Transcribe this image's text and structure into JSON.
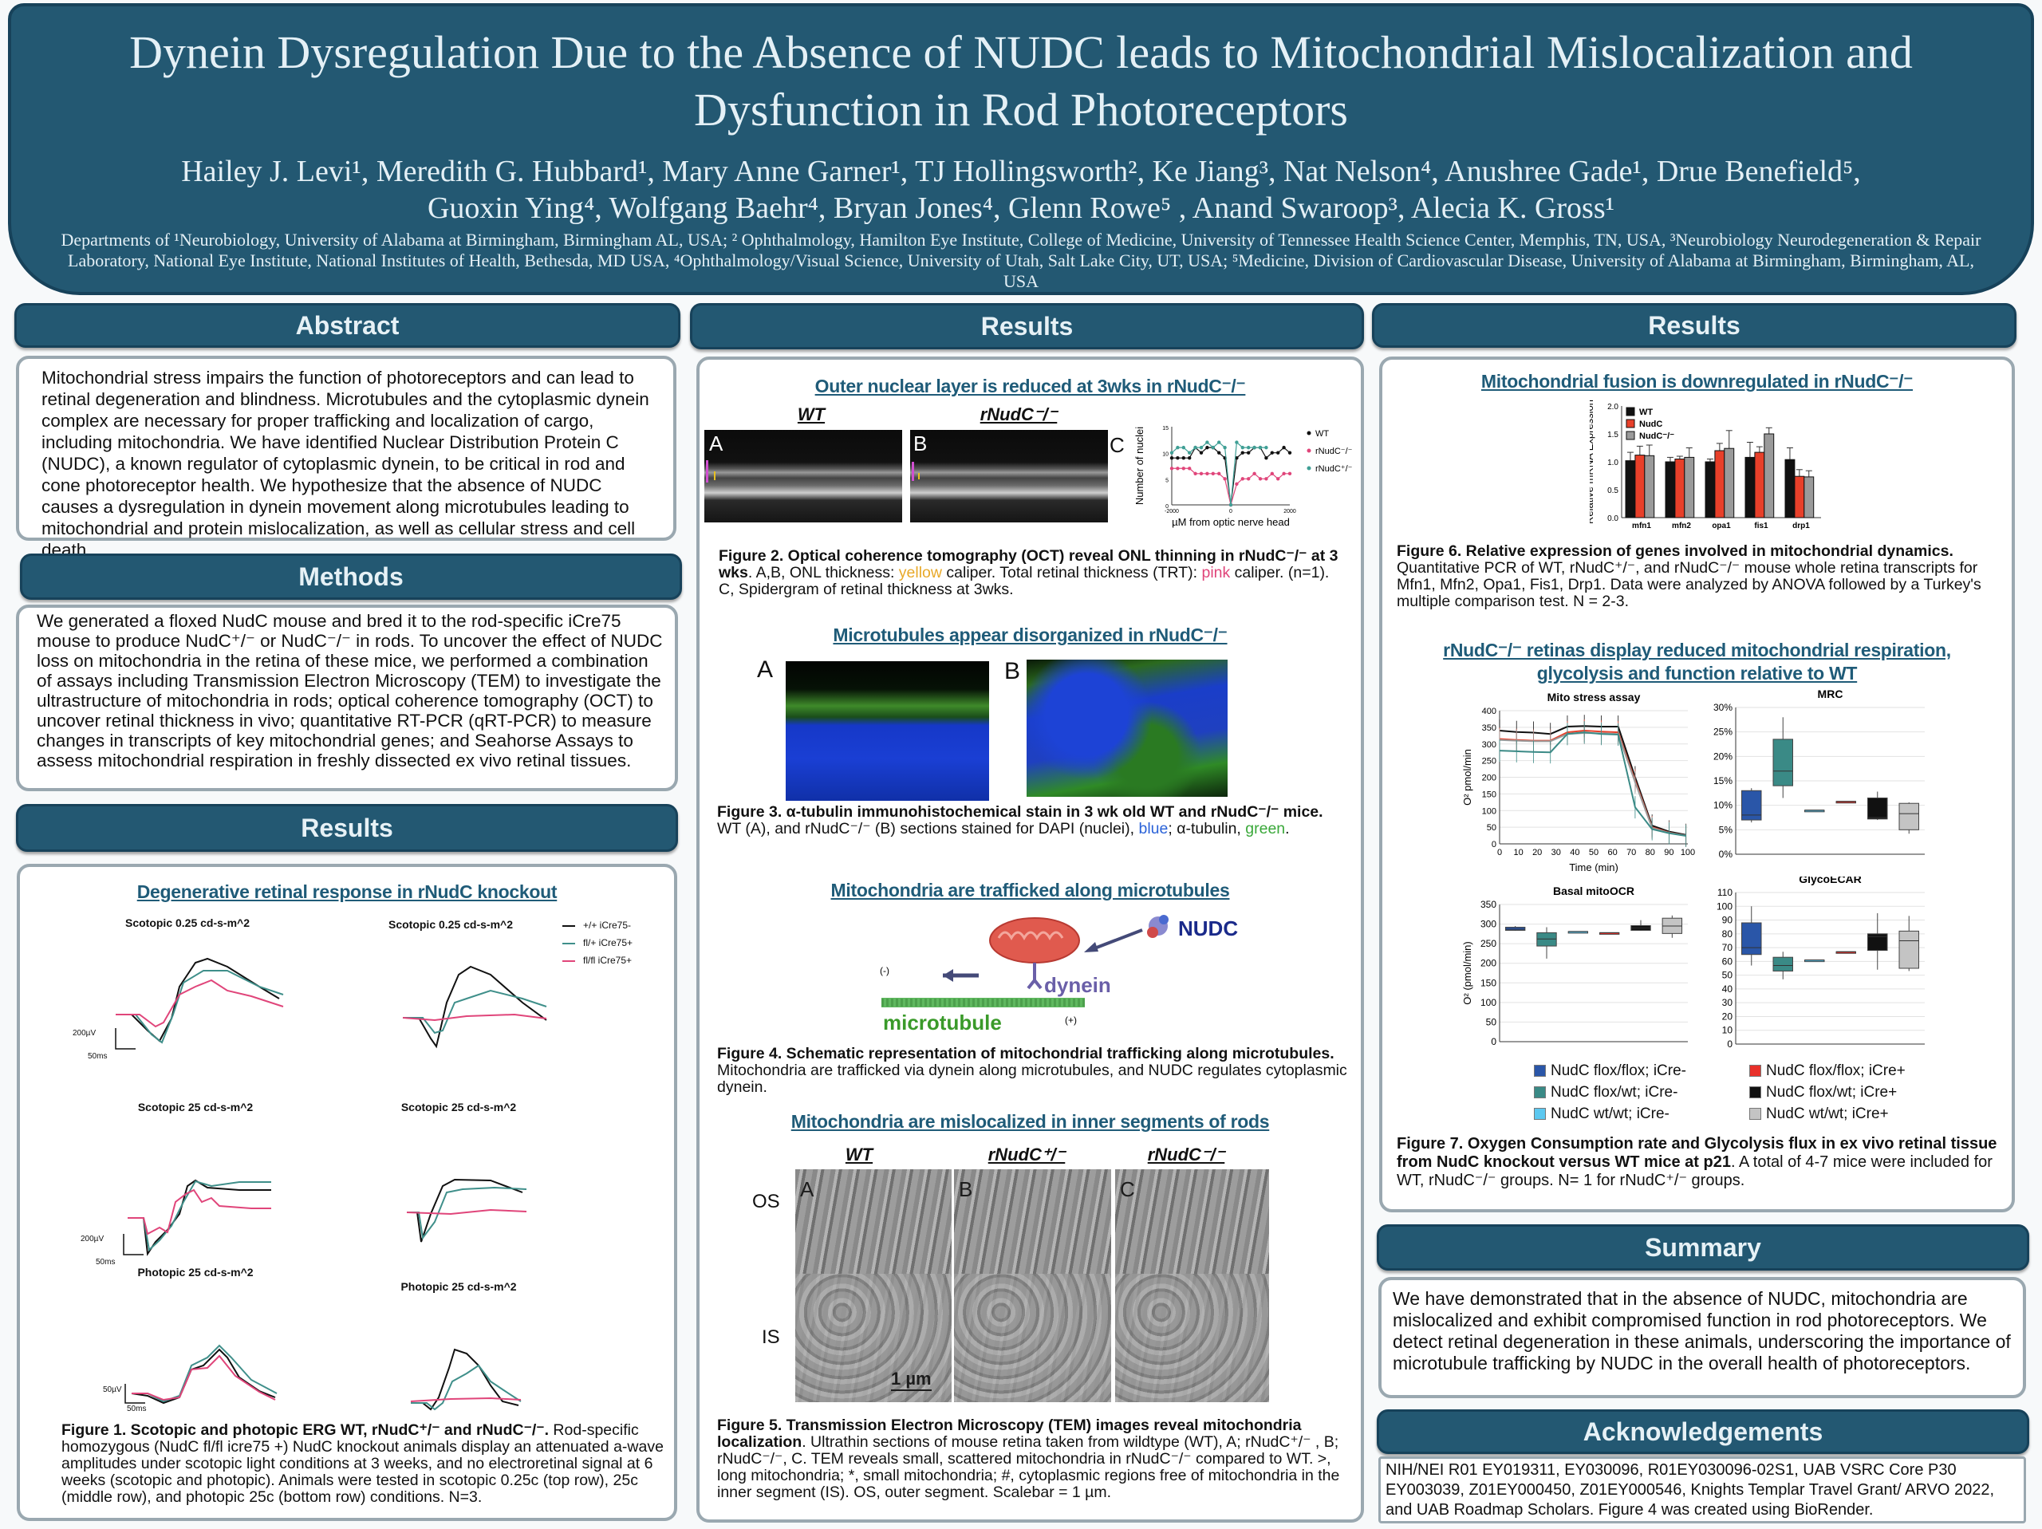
{
  "header": {
    "title_line1": "Dynein Dysregulation Due to the Absence of NUDC leads to Mitochondrial Mislocalization and",
    "title_line2": "Dysfunction in Rod Photoreceptors",
    "authors_line1": "Hailey J. Levi¹, Meredith G. Hubbard¹, Mary Anne Garner¹, TJ Hollingsworth², Ke Jiang³, Nat Nelson⁴, Anushree Gade¹, Drue Benefield⁵,",
    "authors_line2": "Guoxin Ying⁴, Wolfgang Baehr⁴, Bryan Jones⁴, Glenn Rowe⁵ , Anand Swaroop³, Alecia K. Gross¹",
    "affiliations": "Departments of ¹Neurobiology, University of Alabama at Birmingham, Birmingham AL, USA; ² Ophthalmology, Hamilton Eye Institute, College of Medicine, University of Tennessee Health Science Center, Memphis, TN, USA, ³Neurobiology Neurodegeneration & Repair Laboratory, National Eye Institute, National Institutes of Health, Bethesda, MD USA, ⁴Ophthalmology/Visual Science, University of Utah, Salt Lake City, UT, USA; ⁵Medicine, Division of Cardiovascular Disease, University of Alabama at Birmingham, Birmingham, AL, USA"
  },
  "abstract": {
    "heading": "Abstract",
    "text": "Mitochondrial stress impairs the function of photoreceptors and can lead to retinal degeneration and blindness. Microtubules and the cytoplasmic dynein complex are necessary for proper trafficking and localization of cargo, including mitochondria. We have identified Nuclear Distribution Protein C (NUDC), a known regulator of cytoplasmic dynein, to be critical in rod and cone photoreceptor health. We hypothesize that the absence of NUDC causes a dysregulation in dynein movement along microtubules leading to mitochondrial and protein mislocalization, as well as cellular stress and cell death."
  },
  "methods": {
    "heading": "Methods",
    "text": "We generated a floxed NudC mouse and bred it to the rod-specific iCre75 mouse to produce NudC⁺/⁻ or NudC⁻/⁻ in rods. To uncover the effect of NUDC loss on mitochondria in the retina of these mice, we performed a combination of assays including Transmission Electron Microscopy (TEM) to investigate the ultrastructure of mitochondria in rods; optical coherence tomography (OCT) to uncover retinal thickness in vivo; quantitative RT-PCR (qRT-PCR) to measure changes in transcripts of key mitochondrial genes; and Seahorse Assays to assess mitochondrial respiration in freshly dissected ex vivo retinal tissues."
  },
  "results_left": {
    "heading": "Results",
    "subheading": "Degenerative retinal response in rNudC knockout",
    "panels": {
      "r1_left": "Scotopic 0.25 cd-s-m^2",
      "r1_right": "Scotopic 0.25 cd-s-m^2",
      "r2_left": "Scotopic 25 cd-s-m^2",
      "r2_right": "Scotopic 25 cd-s-m^2",
      "r3_left": "Photopic 25 cd-s-m^2",
      "r3_right": "Photopic 25 cd-s-m^2"
    },
    "legend": [
      {
        "label": "+/+ iCre75-",
        "color": "#111111"
      },
      {
        "label": "fl/+ iCre75+",
        "color": "#3f8f8a"
      },
      {
        "label": "fl/fl iCre75+",
        "color": "#e0457a"
      }
    ],
    "scalebars": {
      "r1_v": "200µV",
      "r1_t": "50ms",
      "r2_v": "200µV",
      "r2_t": "50ms",
      "r3_v": "50µV",
      "r3_t": "50ms"
    },
    "fig1_title": "Figure 1. Scotopic and photopic ERG WT, rNudC⁺/⁻ and rNudC⁻/⁻.",
    "fig1_text": " Rod-specific homozygous (NudC fl/fl icre75 +) NudC knockout animals display an attenuated a-wave amplitudes under scotopic light conditions at 3 weeks, and no electroretinal signal at 6 weeks (scotopic and photopic).  Animals were tested in scotopic 0.25c (top row), 25c (middle row), and photopic 25c (bottom row) conditions. N=3."
  },
  "results_mid": {
    "heading": "Results",
    "sub1": "Outer nuclear layer is reduced at 3wks in rNudC⁻/⁻",
    "oct_wt": "WT",
    "oct_ko": "rNudC⁻/⁻",
    "panel_a": "A",
    "panel_b": "B",
    "panel_c": "C",
    "fig2_title": "Figure 2. Optical coherence tomography (OCT) reveal ONL thinning in rNudC⁻/⁻ at 3 wks",
    "fig2_text1": ". A,B, ONL thickness: ",
    "fig2_yellow": "yellow",
    "fig2_text2": " caliper. Total retinal thickness (TRT): ",
    "fig2_pink": "pink",
    "fig2_text3": " caliper. (n=1). C, Spidergram of retinal thickness at 3wks.",
    "sub2": "Microtubules appear disorganized in rNudC⁻/⁻",
    "fig3_title": "Figure 3. α-tubulin immunohistochemical stain in 3 wk old WT and rNudC⁻/⁻ mice.",
    "fig3_text1": "WT (A), and rNudC⁻/⁻ (B) sections stained for DAPI (nuclei), ",
    "fig3_blue": "blue",
    "fig3_text2": "; α-tubulin, ",
    "fig3_green": "green",
    "fig3_text3": ".",
    "sub3": "Mitochondria are trafficked along microtubules",
    "schematic": {
      "nudc": "NUDC",
      "dynein": "dynein",
      "microtubule": "microtubule",
      "minus": "(-)",
      "plus": "(+)"
    },
    "fig4_title": "Figure 4. Schematic representation of mitochondrial trafficking along microtubules.",
    "fig4_text": " Mitochondria are trafficked via dynein along microtubules, and NUDC regulates cytoplasmic dynein.",
    "sub4": "Mitochondria are mislocalized in inner segments of rods",
    "tem_labels": [
      "WT",
      "rNudC⁺/⁻",
      "rNudC⁻/⁻"
    ],
    "tem_panels": [
      "A",
      "B",
      "C"
    ],
    "os": "OS",
    "is": "IS",
    "scalebar": "1 µm",
    "fig5_title": "Figure 5. Transmission Electron Microscopy (TEM) images reveal mitochondria localization",
    "fig5_text": ". Ultrathin sections of mouse retina taken from wildtype (WT), A; rNudC⁺/⁻ , B; rNudC⁻/⁻, C. TEM reveals small, scattered mitochondria in rNudC⁻/⁻ compared to WT. >, long mitochondria; *, small mitochondria; #, cytoplasmic regions free of mitochondria in the inner segment (IS). OS, outer segment. Scalebar = 1 µm."
  },
  "results_right": {
    "heading": "Results",
    "sub1": "Mitochondrial fusion is downregulated in rNudC⁻/⁻",
    "fig6_title": "Figure 6. Relative expression of genes involved in mitochondrial dynamics.",
    "fig6_text": "Quantitative PCR of WT, rNudC⁺/⁻, and rNudC⁻/⁻ mouse whole retina transcripts for Mfn1, Mfn2, Opa1, Fis1, Drp1. Data were analyzed by ANOVA followed by a Turkey's multiple comparison test. N = 2-3.",
    "sub2": "rNudC⁻/⁻ retinas display reduced mitochondrial respiration, glycolysis and function relative to WT",
    "box_legend": [
      {
        "label": "NudC flox/flox; iCre-",
        "color": "#2a56a8"
      },
      {
        "label": "NudC flox/wt; iCre-",
        "color": "#3a8a86"
      },
      {
        "label": "NudC wt/wt; iCre-",
        "color": "#5cc8f0"
      },
      {
        "label": "NudC flox/flox; iCre+",
        "color": "#e8302a"
      },
      {
        "label": "NudC flox/wt; iCre+",
        "color": "#111111"
      },
      {
        "label": "NudC wt/wt; iCre+",
        "color": "#c4c4c4"
      }
    ],
    "fig7_title": "Figure 7. Oxygen Consumption rate and Glycolysis flux in ex vivo retinal tissue from NudC knockout versus WT mice at p21",
    "fig7_text": ". A total of 4-7 mice were included for WT, rNudC⁻/⁻ groups. N= 1 for rNudC⁺/⁻ groups."
  },
  "summary": {
    "heading": "Summary",
    "text": "We have demonstrated that in the absence of NUDC, mitochondria are mislocalized and exhibit compromised function in rod photoreceptors. We detect retinal degeneration in these animals, underscoring the importance of microtubule trafficking by NUDC in the overall health of photoreceptors."
  },
  "acknowledgements": {
    "heading": "Acknowledgements",
    "text": "NIH/NEI R01 EY019311, EY030096, R01EY030096-02S1, UAB VSRC Core P30 EY003039, Z01EY000450, Z01EY000546, Knights Templar Travel Grant/ ARVO 2022, and UAB Roadmap Scholars. Figure 4 was created using BioRender."
  },
  "colors": {
    "header": "#235872",
    "subheading": "#1f5b78",
    "yellow": "#e8a92a",
    "pink": "#e0457a",
    "blue": "#2a62d8",
    "green": "#3aa83a"
  },
  "chart_data": [
    {
      "id": "spidergram",
      "type": "line",
      "xlabel": "µM from optic nerve head",
      "ylabel": "Number of nuclei",
      "xlim": [
        -2000,
        2000
      ],
      "ylim": [
        0,
        15
      ],
      "xticks": [
        -2000,
        0,
        2000
      ],
      "yticks": [
        0,
        5,
        10,
        15
      ],
      "x": [
        -2000,
        -1800,
        -1600,
        -1400,
        -1200,
        -1000,
        -800,
        -600,
        -400,
        -200,
        0,
        200,
        400,
        600,
        800,
        1000,
        1200,
        1400,
        1600,
        1800,
        2000
      ],
      "series": [
        {
          "name": "WT",
          "color": "#111111",
          "marker": "circle",
          "values": [
            9,
            9,
            9,
            9,
            11,
            10,
            11,
            11,
            10,
            9,
            0,
            9,
            10,
            10,
            11,
            11,
            9,
            10,
            10,
            11,
            10
          ]
        },
        {
          "name": "rNudC⁻/⁻",
          "color": "#e0457a",
          "marker": "square",
          "values": [
            7,
            7,
            7,
            7,
            6,
            6,
            6,
            6,
            6,
            5,
            0,
            4,
            5,
            5,
            6,
            5,
            5,
            6,
            5,
            6,
            6
          ]
        },
        {
          "name": "rNudC⁺/⁻",
          "color": "#3f9f95",
          "marker": "triangle",
          "values": [
            10,
            11,
            11,
            10,
            11,
            11,
            12,
            11,
            12,
            11,
            0,
            12,
            11,
            11,
            11,
            11,
            11,
            null,
            null,
            null,
            null
          ]
        }
      ],
      "legend": "right"
    },
    {
      "id": "qpcr",
      "type": "bar",
      "ylabel": "Relative mRNA Expression",
      "ylim": [
        0,
        2.0
      ],
      "yticks": [
        "0.0",
        "0.5",
        "1.0",
        "1.5",
        "2.0"
      ],
      "categories": [
        "mfn1",
        "mfn2",
        "opa1",
        "fis1",
        "drp1"
      ],
      "series": [
        {
          "name": "WT",
          "color": "#111111",
          "values": [
            1.02,
            1.0,
            1.0,
            1.08,
            1.04
          ],
          "errors": [
            0.15,
            0.08,
            0.05,
            0.27,
            0.21
          ]
        },
        {
          "name": "NudC",
          "color": "#e8402a",
          "values": [
            1.12,
            1.05,
            1.2,
            1.17,
            0.74
          ],
          "errors": [
            0.16,
            0.05,
            0.13,
            0.1,
            0.12
          ]
        },
        {
          "name": "NudC⁻/⁻",
          "color": "#9a9a9a",
          "values": [
            1.11,
            1.08,
            1.24,
            1.5,
            0.73
          ],
          "errors": [
            0.19,
            0.17,
            0.32,
            0.11,
            0.11
          ]
        }
      ],
      "legend": "top-left"
    },
    {
      "id": "mito_stress",
      "type": "line",
      "title": "Mito stress assay",
      "xlabel": "Time (min)",
      "ylabel": "O² pmol/min",
      "xlim": [
        0,
        100
      ],
      "ylim": [
        0,
        400
      ],
      "xticks": [
        0,
        10,
        20,
        30,
        40,
        50,
        60,
        70,
        80,
        90,
        100
      ],
      "yticks": [
        0,
        50,
        100,
        150,
        200,
        250,
        300,
        350,
        400
      ],
      "grid": true,
      "x": [
        0,
        9,
        18,
        27,
        36,
        45,
        54,
        63,
        72,
        81,
        90,
        99
      ],
      "series": [
        {
          "color": "#111111",
          "values": [
            340,
            336,
            334,
            330,
            352,
            354,
            352,
            352,
            200,
            55,
            37,
            27
          ]
        },
        {
          "color": "#e8402a",
          "values": [
            315,
            312,
            310,
            310,
            335,
            340,
            337,
            335,
            190,
            50,
            34,
            25
          ]
        },
        {
          "color": "#9a9a9a",
          "values": [
            312,
            310,
            308,
            308,
            330,
            333,
            332,
            330,
            185,
            48,
            33,
            25
          ]
        },
        {
          "color": "#3a8a86",
          "values": [
            280,
            278,
            276,
            275,
            330,
            335,
            330,
            328,
            110,
            44,
            32,
            24
          ]
        }
      ]
    },
    {
      "id": "mrc",
      "type": "box",
      "title": "MRC",
      "ylim": [
        0,
        30
      ],
      "yticks": [
        "0%",
        "5%",
        "10%",
        "15%",
        "20%",
        "25%",
        "30%"
      ],
      "ytick_values": [
        0,
        5,
        10,
        15,
        20,
        25,
        30
      ],
      "grid": true,
      "boxes": [
        [
          6.5,
          7,
          8,
          13,
          13.5
        ],
        [
          11.5,
          14,
          17,
          23.5,
          28
        ],
        [
          9,
          9,
          9,
          9,
          9
        ],
        [
          10.8,
          10.8,
          10.8,
          10.8,
          10.8
        ],
        [
          7,
          7.2,
          7.5,
          11.5,
          12.8
        ],
        [
          4.2,
          5,
          8.3,
          10.4,
          10.6
        ]
      ]
    },
    {
      "id": "basal",
      "type": "box",
      "title": "Basal mitoOCR",
      "ylabel": "O² (pmol/min)",
      "ylim": [
        0,
        350
      ],
      "yticks": [
        "0",
        "50",
        "100",
        "150",
        "200",
        "250",
        "300",
        "350"
      ],
      "ytick_values": [
        0,
        50,
        100,
        150,
        200,
        250,
        300,
        350
      ],
      "grid": true,
      "boxes": [
        [
          283,
          284,
          287,
          292,
          295
        ],
        [
          212,
          244,
          262,
          278,
          292
        ],
        [
          281,
          281,
          281,
          281,
          281
        ],
        [
          278,
          278,
          278,
          278,
          278
        ],
        [
          283,
          284,
          290,
          296,
          310
        ],
        [
          265,
          276,
          295,
          315,
          322
        ]
      ]
    },
    {
      "id": "glyco",
      "type": "box",
      "title": "GlycoECAR",
      "ylim": [
        0,
        110
      ],
      "yticks": [
        "0",
        "10",
        "20",
        "30",
        "40",
        "50",
        "60",
        "70",
        "80",
        "90",
        "100",
        "110"
      ],
      "ytick_values": [
        0,
        10,
        20,
        30,
        40,
        50,
        60,
        70,
        80,
        90,
        100,
        110
      ],
      "grid": true,
      "boxes": [
        [
          57,
          65,
          70,
          88,
          100
        ],
        [
          47,
          53,
          57,
          63,
          67
        ],
        [
          61,
          61,
          61,
          61,
          61
        ],
        [
          67,
          67,
          67,
          67,
          67
        ],
        [
          54,
          68,
          78,
          80,
          95
        ],
        [
          53,
          55,
          75,
          82,
          93
        ]
      ]
    }
  ]
}
